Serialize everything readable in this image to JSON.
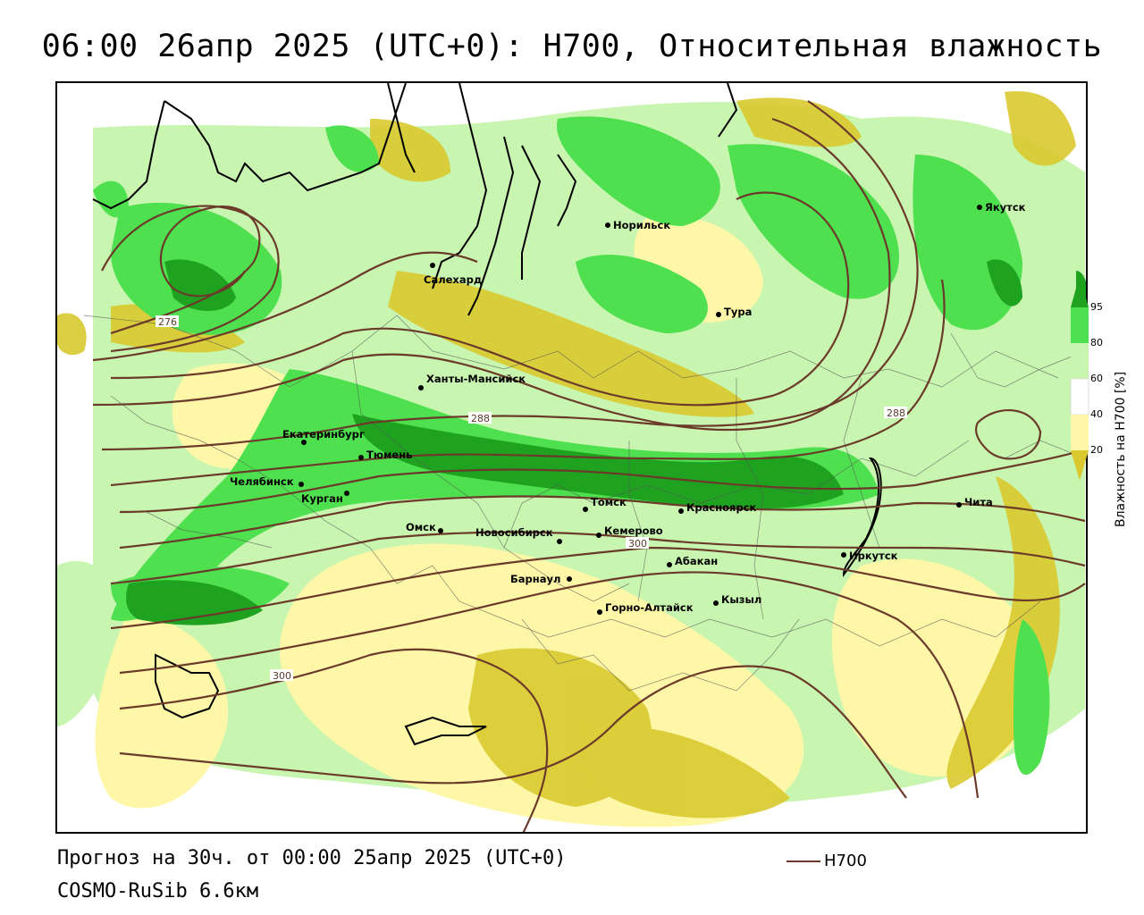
{
  "title": "06:00 26апр 2025 (UTC+0): H700, Относительная влажность",
  "footer": {
    "forecast": "Прогноз на 30ч. от 00:00 25апр 2025 (UTC+0)",
    "model": "COSMO-RuSib 6.6км",
    "contour_legend": "H700"
  },
  "legend": {
    "title": "Влажность на Н700 [%]",
    "ticks": [
      "95",
      "80",
      "60",
      "40",
      "20"
    ],
    "colors": {
      "very_dry": "#d9c92f",
      "dry": "#fff7a8",
      "neutral": "#ffffff",
      "moist": "#c8f5b0",
      "wet": "#4ee04e",
      "very_wet": "#1fa21f"
    }
  },
  "contour_labels": {
    "c276": "276",
    "c288_west": "288",
    "c288_east": "288",
    "c300_center": "300",
    "c300_west": "300"
  },
  "cities": [
    {
      "name": "Норильск",
      "key": "norilsk"
    },
    {
      "name": "Якутск",
      "key": "yakutsk"
    },
    {
      "name": "Салехард",
      "key": "salekhard"
    },
    {
      "name": "Тура",
      "key": "tura"
    },
    {
      "name": "Ханты-Мансийск",
      "key": "khanty"
    },
    {
      "name": "Екатеринбург",
      "key": "ekb"
    },
    {
      "name": "Тюмень",
      "key": "tyumen"
    },
    {
      "name": "Челябинск",
      "key": "chel"
    },
    {
      "name": "Курган",
      "key": "kurgan"
    },
    {
      "name": "Омск",
      "key": "omsk"
    },
    {
      "name": "Томск",
      "key": "tomsk"
    },
    {
      "name": "Новосибирск",
      "key": "nsk"
    },
    {
      "name": "Кемерово",
      "key": "kemerovo"
    },
    {
      "name": "Красноярск",
      "key": "krsk"
    },
    {
      "name": "Абакан",
      "key": "abakan"
    },
    {
      "name": "Барнаул",
      "key": "barnaul"
    },
    {
      "name": "Горно-Алтайск",
      "key": "gorno"
    },
    {
      "name": "Кызыл",
      "key": "kyzyl"
    },
    {
      "name": "Иркутск",
      "key": "irkutsk"
    },
    {
      "name": "Чита",
      "key": "chita"
    }
  ]
}
